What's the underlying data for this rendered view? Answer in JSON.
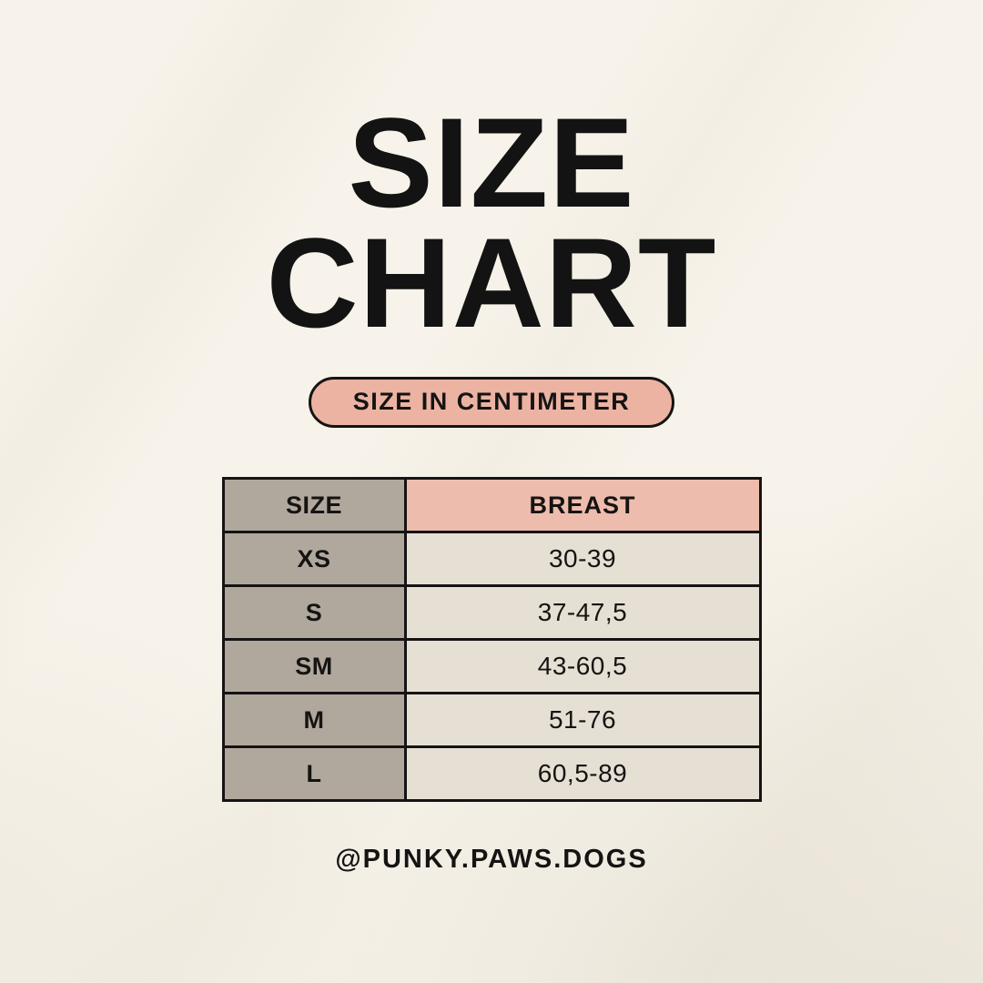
{
  "title": {
    "line1": "SIZE",
    "line2": "CHART"
  },
  "badge": {
    "label": "SIZE IN CENTIMETER"
  },
  "size_table": {
    "columns": [
      "SIZE",
      "BREAST"
    ],
    "rows": [
      {
        "size": "XS",
        "breast": "30-39"
      },
      {
        "size": "S",
        "breast": "37-47,5"
      },
      {
        "size": "SM",
        "breast": "43-60,5"
      },
      {
        "size": "M",
        "breast": "51-76"
      },
      {
        "size": "L",
        "breast": "60,5-89"
      }
    ]
  },
  "footer": {
    "handle": "@PUNKY.PAWS.DOGS"
  },
  "colors": {
    "background": "#f7f3ea",
    "text": "#151413",
    "badge_pink": "#ecb3a3",
    "header_pink": "#eebcad",
    "label_taupe": "#b1a89d",
    "value_cream": "#e6dfd3",
    "table_border": "#151413"
  }
}
